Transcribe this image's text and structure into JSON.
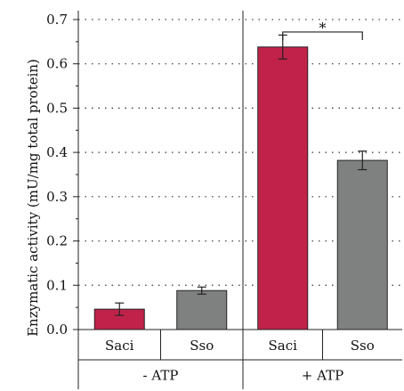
{
  "chart_data": {
    "type": "bar",
    "title": "",
    "xlabel": "",
    "ylabel": "Enzymatic activity (mU/mg total protein)",
    "ylim": [
      0,
      0.72
    ],
    "yticks": [
      "0.0",
      "0.1",
      "0.2",
      "0.3",
      "0.4",
      "0.5",
      "0.6",
      "0.7"
    ],
    "ytick_values": [
      0,
      0.1,
      0.2,
      0.3,
      0.4,
      0.5,
      0.6,
      0.7
    ],
    "grid": "dotted horizontal",
    "groups": [
      {
        "label": "- ATP",
        "bars": [
          {
            "category": "Saci",
            "value": 0.046,
            "error": 0.014,
            "color": "#c0224a"
          },
          {
            "category": "Sso",
            "value": 0.088,
            "error": 0.008,
            "color": "#7f8180"
          }
        ]
      },
      {
        "label": "+ ATP",
        "bars": [
          {
            "category": "Saci",
            "value": 0.638,
            "error": 0.027,
            "color": "#c0224a"
          },
          {
            "category": "Sso",
            "value": 0.382,
            "error": 0.021,
            "color": "#7f8180"
          }
        ]
      }
    ],
    "significance": {
      "group": 1,
      "label": "*"
    }
  }
}
